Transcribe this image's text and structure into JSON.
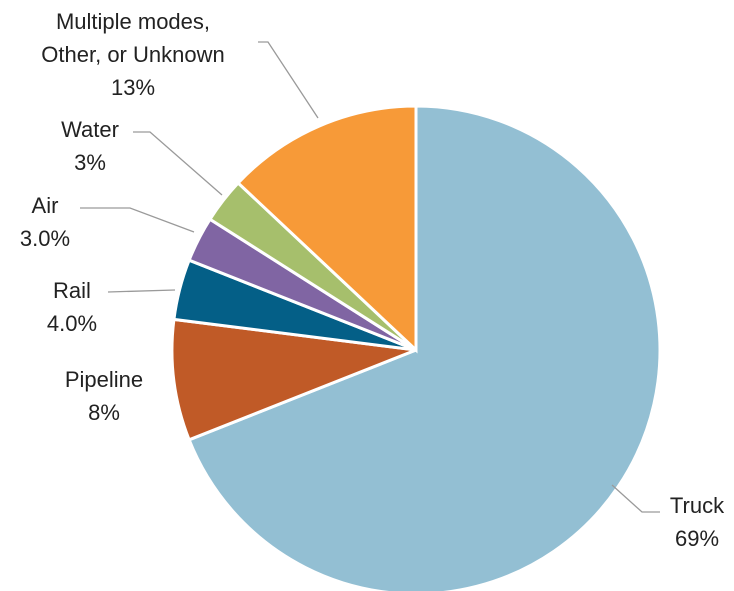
{
  "chart_data": {
    "type": "pie",
    "title": "",
    "start": "top, clockwise",
    "slices": [
      {
        "name": "Truck",
        "value": 69,
        "value_label": "69%",
        "color": "#93bfd3"
      },
      {
        "name": "Pipeline",
        "value": 8,
        "value_label": "8%",
        "color": "#c05a27"
      },
      {
        "name": "Rail",
        "value": 4.0,
        "value_label": "4.0%",
        "color": "#045f87"
      },
      {
        "name": "Air",
        "value": 3.0,
        "value_label": "3.0%",
        "color": "#8065a3"
      },
      {
        "name": "Water",
        "value": 3,
        "value_label": "3%",
        "color": "#a6bf6c"
      },
      {
        "name": "Multiple modes, Other, or Unknown",
        "name_lines": [
          "Multiple modes,",
          "Other, or Unknown"
        ],
        "value": 13,
        "value_label": "13%",
        "color": "#f79a38"
      }
    ]
  }
}
